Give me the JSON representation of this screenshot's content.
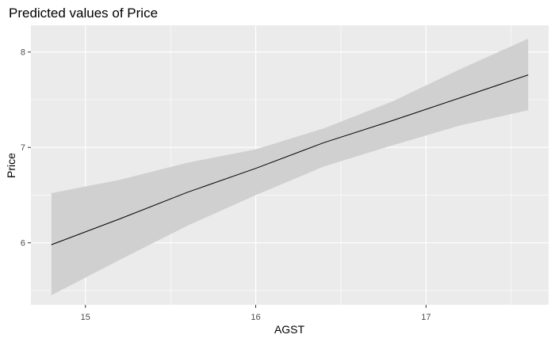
{
  "chart_data": {
    "type": "line",
    "title": "Predicted values of Price",
    "xlabel": "AGST",
    "ylabel": "Price",
    "xlim": [
      14.68,
      17.72
    ],
    "ylim": [
      5.35,
      8.28
    ],
    "x_ticks": [
      15,
      16,
      17
    ],
    "y_ticks": [
      6,
      7,
      8
    ],
    "grid": true,
    "series": [
      {
        "x": [
          14.8,
          15.2,
          15.6,
          16.0,
          16.4,
          16.8,
          17.2,
          17.6
        ],
        "values": [
          5.98,
          6.25,
          6.53,
          6.78,
          7.05,
          7.28,
          7.52,
          7.76
        ],
        "lower": [
          5.45,
          5.82,
          6.18,
          6.5,
          6.8,
          7.02,
          7.23,
          7.39
        ],
        "upper": [
          6.52,
          6.66,
          6.84,
          6.98,
          7.2,
          7.48,
          7.82,
          8.14
        ]
      }
    ],
    "colors": {
      "panel": "#ebebeb",
      "grid_major": "#ffffff",
      "ribbon": "#d0d0d0",
      "line": "#000000"
    }
  }
}
